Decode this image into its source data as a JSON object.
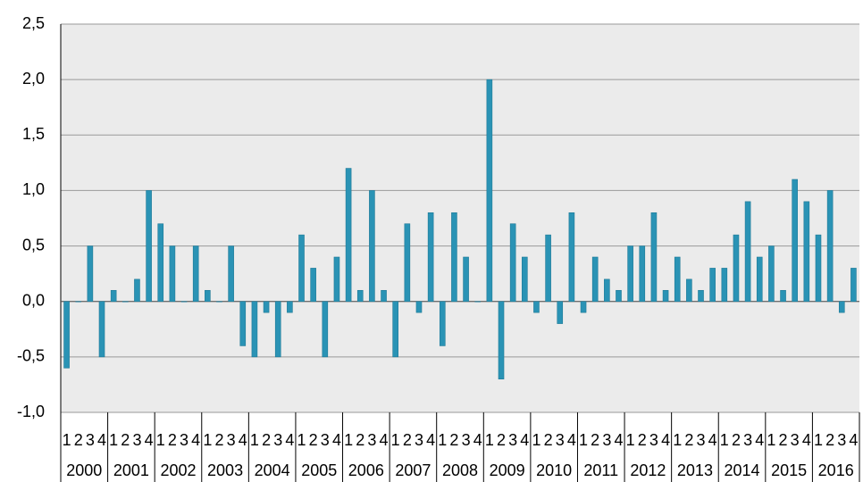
{
  "chart_data": {
    "type": "bar",
    "categories": [
      "1",
      "2",
      "3",
      "4",
      "1",
      "2",
      "3",
      "4",
      "1",
      "2",
      "3",
      "4",
      "1",
      "2",
      "3",
      "4",
      "1",
      "2",
      "3",
      "4",
      "1",
      "2",
      "3",
      "4",
      "1",
      "2",
      "3",
      "4",
      "1",
      "2",
      "3",
      "4",
      "1",
      "2",
      "3",
      "4",
      "1",
      "2",
      "3",
      "4",
      "1",
      "2",
      "3",
      "4",
      "1",
      "2",
      "3",
      "4",
      "1",
      "2",
      "3",
      "4",
      "1",
      "2",
      "3",
      "4",
      "1",
      "2",
      "3",
      "4",
      "1",
      "2",
      "3",
      "4",
      "1",
      "2",
      "3",
      "4"
    ],
    "years": [
      "2000",
      "2001",
      "2002",
      "2003",
      "2004",
      "2005",
      "2006",
      "2007",
      "2008",
      "2009",
      "2010",
      "2011",
      "2012",
      "2013",
      "2014",
      "2015",
      "2016"
    ],
    "values": [
      -0.6,
      0,
      0.5,
      -0.5,
      0.1,
      0,
      0.2,
      1.0,
      0.7,
      0.5,
      0,
      0.5,
      0.1,
      0,
      0.5,
      -0.4,
      -0.5,
      -0.1,
      -0.5,
      -0.1,
      0.6,
      0.3,
      -0.5,
      0.4,
      1.2,
      0.1,
      1.0,
      0.1,
      -0.5,
      0.7,
      -0.1,
      0.8,
      -0.4,
      0.8,
      0.4,
      0,
      2.0,
      -0.7,
      0.7,
      0.4,
      -0.1,
      0.6,
      -0.2,
      0.8,
      -0.1,
      0.4,
      0.2,
      0.1,
      0.5,
      0.5,
      0.8,
      0.1,
      0.4,
      0.2,
      0.1,
      0.3,
      0.3,
      0.6,
      0.9,
      0.4,
      0.5,
      0.1,
      1.1,
      0.9,
      0.6,
      1.0,
      -0.1,
      0.3
    ],
    "color": "#2a93b5",
    "ylim": [
      -1.0,
      2.5
    ],
    "yticks": [
      {
        "value": -1.0,
        "label": "-1,0"
      },
      {
        "value": -0.5,
        "label": "-0,5"
      },
      {
        "value": 0,
        "label": "0,0"
      },
      {
        "value": 0.5,
        "label": "0,5"
      },
      {
        "value": 1.0,
        "label": "1,0"
      },
      {
        "value": 1.5,
        "label": "1,5"
      },
      {
        "value": 2.0,
        "label": "2,0"
      },
      {
        "value": 2.5,
        "label": "2,5"
      }
    ],
    "grid": true
  }
}
